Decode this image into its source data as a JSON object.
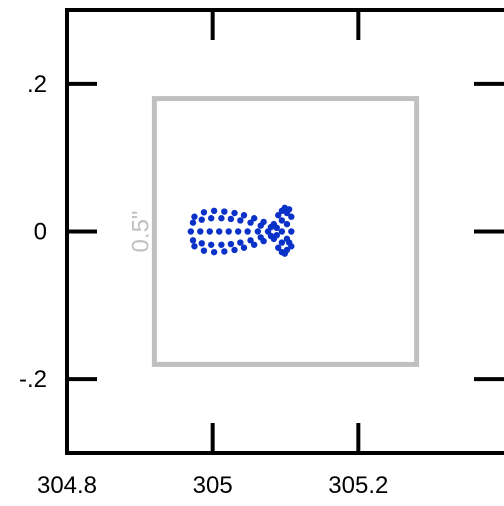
{
  "colors": {
    "axis": "#000000",
    "box": "#c0c0c0",
    "points": "#0a32c8"
  },
  "chart_data": {
    "type": "scatter",
    "title": "",
    "xlabel": "",
    "ylabel": "",
    "xlim": [
      304.8,
      305.4
    ],
    "ylim": [
      -0.3,
      0.3
    ],
    "x_ticks": [
      304.8,
      305,
      305.2
    ],
    "x_tick_labels": [
      "304.8",
      "305",
      "305.2"
    ],
    "y_ticks": [
      -0.2,
      0,
      0.2
    ],
    "y_tick_labels": [
      "-.2",
      "0",
      ".2"
    ],
    "grid": false,
    "aperture_box": {
      "x_range": [
        304.92,
        305.28
      ],
      "y_range": [
        -0.18,
        0.18
      ],
      "label": "0.5\""
    },
    "series": [
      {
        "description": "dense cluster of blue dots shaped like nested chevrons leading into a blob",
        "points": [
          [
            304.97,
            0.0
          ],
          [
            304.973,
            0.012
          ],
          [
            304.973,
            -0.012
          ],
          [
            304.975,
            0.02
          ],
          [
            304.975,
            -0.02
          ],
          [
            304.983,
            0.0
          ],
          [
            304.985,
            0.016
          ],
          [
            304.985,
            -0.016
          ],
          [
            304.988,
            0.026
          ],
          [
            304.988,
            -0.026
          ],
          [
            304.996,
            0.0
          ],
          [
            304.998,
            0.018
          ],
          [
            304.998,
            -0.018
          ],
          [
            305.002,
            0.028
          ],
          [
            305.002,
            -0.028
          ],
          [
            305.009,
            0.0
          ],
          [
            305.012,
            0.018
          ],
          [
            305.012,
            -0.018
          ],
          [
            305.016,
            0.027
          ],
          [
            305.016,
            -0.027
          ],
          [
            305.022,
            0.0
          ],
          [
            305.025,
            0.017
          ],
          [
            305.025,
            -0.017
          ],
          [
            305.03,
            0.025
          ],
          [
            305.03,
            -0.025
          ],
          [
            305.035,
            0.0
          ],
          [
            305.038,
            0.015
          ],
          [
            305.038,
            -0.015
          ],
          [
            305.043,
            0.022
          ],
          [
            305.043,
            -0.022
          ],
          [
            305.048,
            0.0
          ],
          [
            305.052,
            0.012
          ],
          [
            305.052,
            -0.012
          ],
          [
            305.057,
            0.018
          ],
          [
            305.057,
            -0.018
          ],
          [
            305.062,
            0.0
          ],
          [
            305.066,
            0.008
          ],
          [
            305.066,
            -0.008
          ],
          [
            305.07,
            0.013
          ],
          [
            305.07,
            -0.013
          ],
          [
            305.076,
            0.0
          ],
          [
            305.08,
            0.006
          ],
          [
            305.08,
            -0.006
          ],
          [
            305.084,
            0.01
          ],
          [
            305.084,
            -0.01
          ],
          [
            305.095,
            0.028
          ],
          [
            305.095,
            0.015
          ],
          [
            305.095,
            0.0
          ],
          [
            305.095,
            -0.015
          ],
          [
            305.095,
            -0.028
          ],
          [
            305.102,
            0.025
          ],
          [
            305.102,
            0.01
          ],
          [
            305.102,
            -0.01
          ],
          [
            305.102,
            -0.025
          ],
          [
            305.108,
            0.02
          ],
          [
            305.108,
            0.0
          ],
          [
            305.108,
            -0.02
          ],
          [
            305.09,
            0.022
          ],
          [
            305.09,
            -0.022
          ],
          [
            305.088,
            0.005
          ],
          [
            305.088,
            -0.005
          ],
          [
            305.099,
            0.032
          ],
          [
            305.099,
            -0.03
          ],
          [
            305.105,
            0.03
          ],
          [
            305.105,
            -0.015
          ]
        ]
      }
    ]
  }
}
